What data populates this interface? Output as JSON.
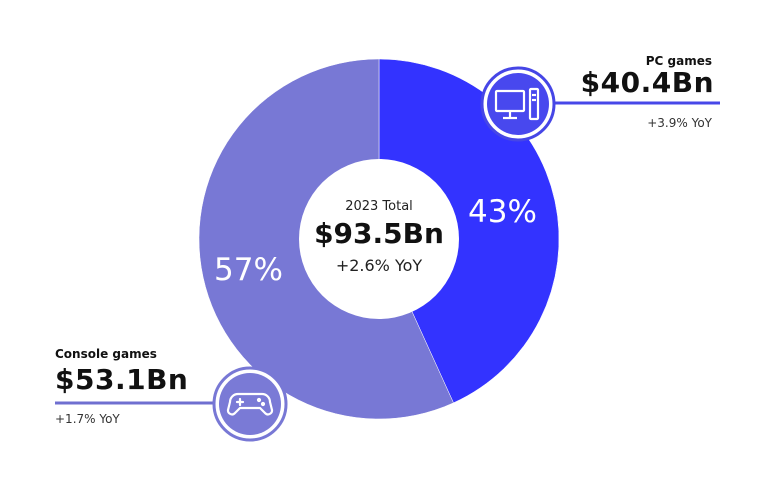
{
  "chart_data": {
    "type": "pie",
    "categories": [
      "PC games",
      "Console games"
    ],
    "values": [
      40.4,
      53.1
    ],
    "percent_labels": [
      "43%",
      "57%"
    ],
    "value_labels": [
      "$40.4Bn",
      "$53.1Bn"
    ],
    "yoy_labels": [
      "+3.9% YoY",
      "+1.7% YoY"
    ],
    "colors": [
      "#3333ff",
      "#7878d5"
    ],
    "center": {
      "title": "2023 Total",
      "total": "$93.5Bn",
      "yoy": "+2.6% YoY"
    },
    "icons": [
      "desktop-computer-icon",
      "gamepad-icon"
    ]
  }
}
